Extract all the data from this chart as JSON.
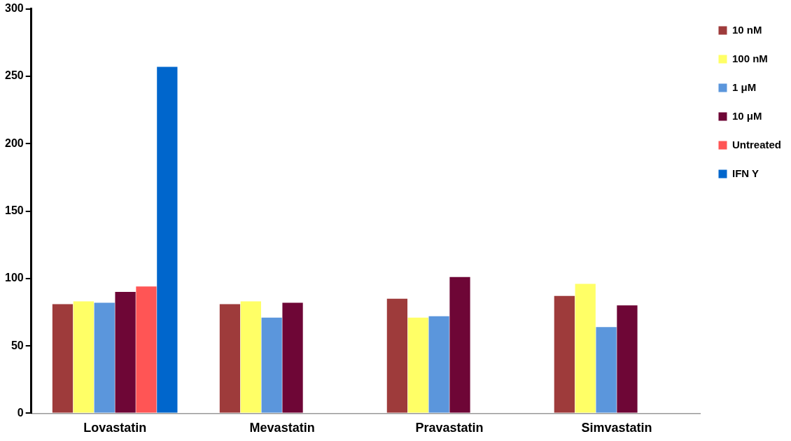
{
  "chart_data": {
    "type": "bar",
    "categories": [
      "Lovastatin",
      "Mevastatin",
      "Pravastatin",
      "Simvastatin"
    ],
    "series": [
      {
        "name": "10 nM",
        "color": "#9e3b3b",
        "values": [
          81,
          81,
          85,
          87
        ]
      },
      {
        "name": "100 nM",
        "color": "#ffff66",
        "values": [
          83,
          83,
          71,
          96
        ]
      },
      {
        "name": "1 μM",
        "color": "#5b96dc",
        "values": [
          82,
          71,
          72,
          64
        ]
      },
      {
        "name": "10 μM",
        "color": "#6e0636",
        "values": [
          90,
          82,
          101,
          80
        ]
      },
      {
        "name": "Untreated",
        "color": "#ff5555",
        "values": [
          94,
          null,
          null,
          null
        ]
      },
      {
        "name": "IFN Y",
        "color": "#0066cc",
        "values": [
          257,
          null,
          null,
          null
        ]
      }
    ],
    "ylim": [
      0,
      300
    ],
    "yticks": [
      0,
      50,
      100,
      150,
      200,
      250,
      300
    ],
    "grid": false,
    "legend": "top right"
  }
}
